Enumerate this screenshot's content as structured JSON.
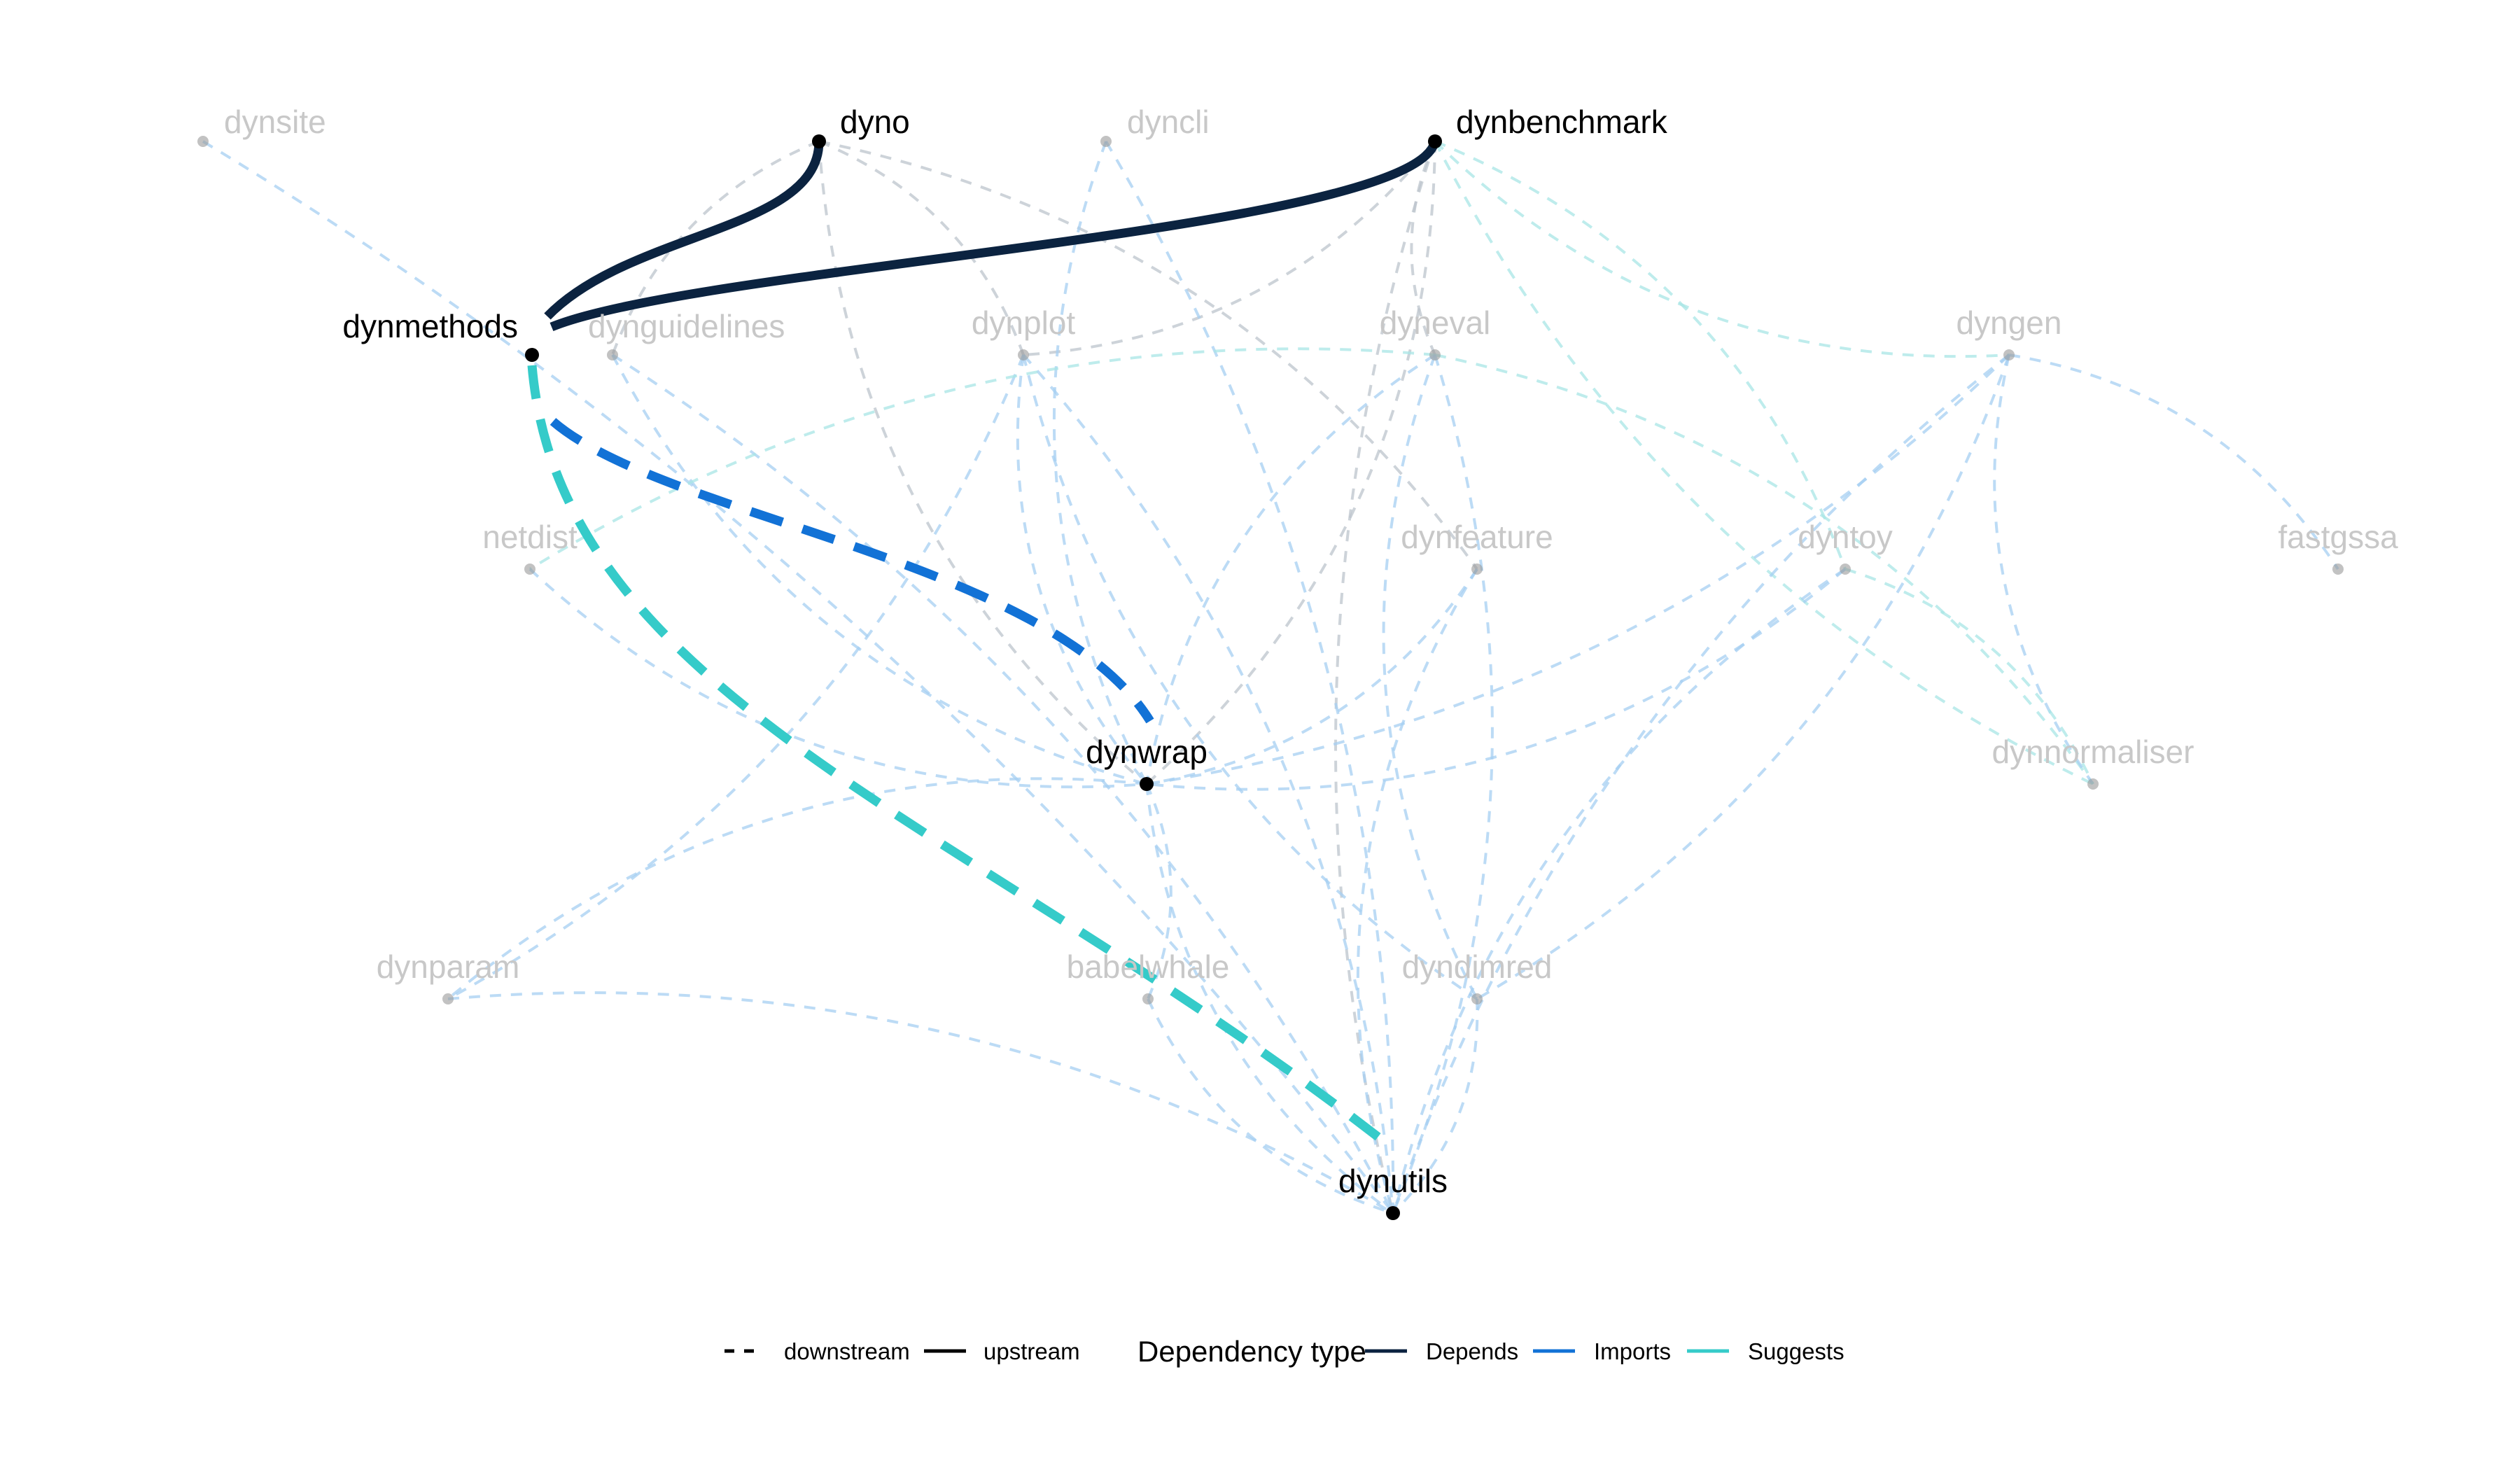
{
  "nodes": [
    {
      "id": "dynsite",
      "label": "dynsite",
      "highlighted": false
    },
    {
      "id": "dyno",
      "label": "dyno",
      "highlighted": true
    },
    {
      "id": "dyncli",
      "label": "dyncli",
      "highlighted": false
    },
    {
      "id": "dynbenchmark",
      "label": "dynbenchmark",
      "highlighted": true
    },
    {
      "id": "dynmethods",
      "label": "dynmethods",
      "highlighted": true
    },
    {
      "id": "dynguidelines",
      "label": "dynguidelines",
      "highlighted": false
    },
    {
      "id": "dynplot",
      "label": "dynplot",
      "highlighted": false
    },
    {
      "id": "dyneval",
      "label": "dyneval",
      "highlighted": false
    },
    {
      "id": "dyngen",
      "label": "dyngen",
      "highlighted": false
    },
    {
      "id": "netdist",
      "label": "netdist",
      "highlighted": false
    },
    {
      "id": "dynfeature",
      "label": "dynfeature",
      "highlighted": false
    },
    {
      "id": "dyntoy",
      "label": "dyntoy",
      "highlighted": false
    },
    {
      "id": "fastgssa",
      "label": "fastgssa",
      "highlighted": false
    },
    {
      "id": "dynwrap",
      "label": "dynwrap",
      "highlighted": true
    },
    {
      "id": "dynnormaliser",
      "label": "dynnormaliser",
      "highlighted": false
    },
    {
      "id": "dynparam",
      "label": "dynparam",
      "highlighted": false
    },
    {
      "id": "babelwhale",
      "label": "babelwhale",
      "highlighted": false
    },
    {
      "id": "dyndimred",
      "label": "dyndimred",
      "highlighted": false
    },
    {
      "id": "dynutils",
      "label": "dynutils",
      "highlighted": true
    }
  ],
  "edges": [
    {
      "from": "dynmethods",
      "to": "dyno",
      "type": "Depends",
      "direction": "upstream",
      "highlighted": true
    },
    {
      "from": "dynmethods",
      "to": "dynbenchmark",
      "type": "Depends",
      "direction": "upstream",
      "highlighted": true
    },
    {
      "from": "dynmethods",
      "to": "dynwrap",
      "type": "Imports",
      "direction": "downstream",
      "highlighted": true
    },
    {
      "from": "dynmethods",
      "to": "dynutils",
      "type": "Suggests",
      "direction": "downstream",
      "highlighted": true
    },
    {
      "from": "dyno",
      "to": "dynguidelines",
      "type": "Depends",
      "direction": "downstream",
      "highlighted": false
    },
    {
      "from": "dyno",
      "to": "dynplot",
      "type": "Depends",
      "direction": "downstream",
      "highlighted": false
    },
    {
      "from": "dyno",
      "to": "dynwrap",
      "type": "Depends",
      "direction": "downstream",
      "highlighted": false
    },
    {
      "from": "dyno",
      "to": "dynfeature",
      "type": "Depends",
      "direction": "downstream",
      "highlighted": false
    },
    {
      "from": "dynbenchmark",
      "to": "dyneval",
      "type": "Depends",
      "direction": "downstream",
      "highlighted": false
    },
    {
      "from": "dynbenchmark",
      "to": "dynplot",
      "type": "Depends",
      "direction": "downstream",
      "highlighted": false
    },
    {
      "from": "dynbenchmark",
      "to": "dyngen",
      "type": "Suggests",
      "direction": "downstream",
      "highlighted": false
    },
    {
      "from": "dynbenchmark",
      "to": "dyntoy",
      "type": "Suggests",
      "direction": "downstream",
      "highlighted": false
    },
    {
      "from": "dynbenchmark",
      "to": "dynnormaliser",
      "type": "Suggests",
      "direction": "downstream",
      "highlighted": false
    },
    {
      "from": "dynbenchmark",
      "to": "dynwrap",
      "type": "Depends",
      "direction": "downstream",
      "highlighted": false
    },
    {
      "from": "dynbenchmark",
      "to": "dynutils",
      "type": "Depends",
      "direction": "downstream",
      "highlighted": false
    },
    {
      "from": "dynsite",
      "to": "dynutils",
      "type": "Imports",
      "direction": "downstream",
      "highlighted": false
    },
    {
      "from": "dyncli",
      "to": "dynwrap",
      "type": "Imports",
      "direction": "downstream",
      "highlighted": false
    },
    {
      "from": "dyncli",
      "to": "dynutils",
      "type": "Imports",
      "direction": "downstream",
      "highlighted": false
    },
    {
      "from": "dynguidelines",
      "to": "dynwrap",
      "type": "Imports",
      "direction": "downstream",
      "highlighted": false
    },
    {
      "from": "dynguidelines",
      "to": "dynutils",
      "type": "Imports",
      "direction": "downstream",
      "highlighted": false
    },
    {
      "from": "dynplot",
      "to": "dynwrap",
      "type": "Imports",
      "direction": "downstream",
      "highlighted": false
    },
    {
      "from": "dynplot",
      "to": "dynutils",
      "type": "Imports",
      "direction": "downstream",
      "highlighted": false
    },
    {
      "from": "dynplot",
      "to": "dyndimred",
      "type": "Imports",
      "direction": "downstream",
      "highlighted": false
    },
    {
      "from": "dynplot",
      "to": "dynparam",
      "type": "Imports",
      "direction": "downstream",
      "highlighted": false
    },
    {
      "from": "dyneval",
      "to": "dynwrap",
      "type": "Imports",
      "direction": "downstream",
      "highlighted": false
    },
    {
      "from": "dyneval",
      "to": "dynutils",
      "type": "Imports",
      "direction": "downstream",
      "highlighted": false
    },
    {
      "from": "dyneval",
      "to": "netdist",
      "type": "Suggests",
      "direction": "downstream",
      "highlighted": false
    },
    {
      "from": "dyneval",
      "to": "dynnormaliser",
      "type": "Suggests",
      "direction": "downstream",
      "highlighted": false
    },
    {
      "from": "dyneval",
      "to": "dyndimred",
      "type": "Imports",
      "direction": "downstream",
      "highlighted": false
    },
    {
      "from": "dyngen",
      "to": "dynwrap",
      "type": "Imports",
      "direction": "downstream",
      "highlighted": false
    },
    {
      "from": "dyngen",
      "to": "dynutils",
      "type": "Imports",
      "direction": "downstream",
      "highlighted": false
    },
    {
      "from": "dyngen",
      "to": "fastgssa",
      "type": "Imports",
      "direction": "downstream",
      "highlighted": false
    },
    {
      "from": "dyngen",
      "to": "dynnormaliser",
      "type": "Imports",
      "direction": "downstream",
      "highlighted": false
    },
    {
      "from": "dyngen",
      "to": "dyndimred",
      "type": "Imports",
      "direction": "downstream",
      "highlighted": false
    },
    {
      "from": "netdist",
      "to": "dynwrap",
      "type": "Imports",
      "direction": "downstream",
      "highlighted": false
    },
    {
      "from": "dynfeature",
      "to": "dynwrap",
      "type": "Imports",
      "direction": "downstream",
      "highlighted": false
    },
    {
      "from": "dynfeature",
      "to": "dynutils",
      "type": "Imports",
      "direction": "downstream",
      "highlighted": false
    },
    {
      "from": "dyntoy",
      "to": "dynwrap",
      "type": "Imports",
      "direction": "downstream",
      "highlighted": false
    },
    {
      "from": "dyntoy",
      "to": "dynutils",
      "type": "Imports",
      "direction": "downstream",
      "highlighted": false
    },
    {
      "from": "dyntoy",
      "to": "dynnormaliser",
      "type": "Suggests",
      "direction": "downstream",
      "highlighted": false
    },
    {
      "from": "dynwrap",
      "to": "dynparam",
      "type": "Imports",
      "direction": "downstream",
      "highlighted": false
    },
    {
      "from": "dynwrap",
      "to": "babelwhale",
      "type": "Imports",
      "direction": "downstream",
      "highlighted": false
    },
    {
      "from": "dynwrap",
      "to": "dynutils",
      "type": "Imports",
      "direction": "downstream",
      "highlighted": false
    },
    {
      "from": "dynparam",
      "to": "dynutils",
      "type": "Imports",
      "direction": "downstream",
      "highlighted": false
    },
    {
      "from": "babelwhale",
      "to": "dynutils",
      "type": "Imports",
      "direction": "downstream",
      "highlighted": false
    },
    {
      "from": "dyndimred",
      "to": "dynutils",
      "type": "Imports",
      "direction": "downstream",
      "highlighted": false
    }
  ],
  "colors": {
    "Depends": "#0b2340",
    "Imports": "#1272d6",
    "Suggests": "#35cbc9",
    "highlight_node": "#000000",
    "faded_label": "#c8c8c8",
    "faded_node": "#9a9a9a"
  },
  "legend": {
    "direction_items": [
      {
        "label": "downstream",
        "dashed": true
      },
      {
        "label": "upstream",
        "dashed": false
      }
    ],
    "type_title": "Dependency type",
    "type_items": [
      {
        "label": "Depends",
        "type": "Depends"
      },
      {
        "label": "Imports",
        "type": "Imports"
      },
      {
        "label": "Suggests",
        "type": "Suggests"
      }
    ]
  }
}
